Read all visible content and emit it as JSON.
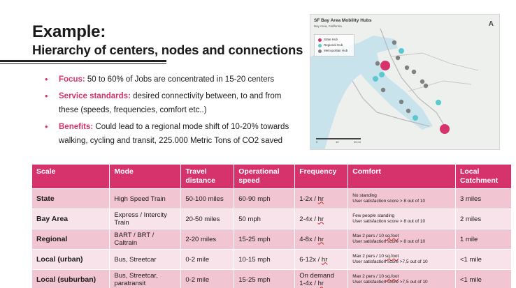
{
  "slide": {
    "title": "Example:",
    "subtitle": "Hierarchy of centers, nodes and connections"
  },
  "bullets": [
    {
      "label": "Focus:",
      "text": " 50 to 60% of Jobs are concentrated in 15-20 centers"
    },
    {
      "label": "Service standards:",
      "text": " desired connectivity between, to and from these (speeds, frequencies, comfort etc..)"
    },
    {
      "label": "Benefits:",
      "text": " Could lead to a regional mode shift of 10-20% towards walking, cycling and transit, 225.000 Metric Tons of CO2 saved"
    }
  ],
  "map": {
    "title": "SF Bay Area Mobility Hubs",
    "subtitle": "Bay Area, California",
    "legend": [
      {
        "label": "State Hub",
        "color": "#d6336c"
      },
      {
        "label": "Regional Hub",
        "color": "#5bc8d0"
      },
      {
        "label": "Metropolitan Hub",
        "color": "#808080"
      }
    ],
    "north_icon": "north-arrow-icon",
    "scale_labels": [
      "0",
      "10",
      "20 mi"
    ]
  },
  "colors": {
    "accent": "#d6336c",
    "row_dark": "#f2c5d2",
    "row_light": "#f9e3ea"
  },
  "table": {
    "headers": [
      "Scale",
      "Mode",
      "Travel distance",
      "Operational speed",
      "Frequency",
      "Comfort",
      "Local Catchment"
    ],
    "rows": [
      {
        "scale": "State",
        "mode": "High Speed Train",
        "distance": "50-100 miles",
        "speed": "60-90 mph",
        "freq_pre": "1-2x / ",
        "freq_unit": "hr",
        "comfort_1": "No standing",
        "comfort_2": "User satisfaction score > 8 out of 10",
        "catchment": "3 miles"
      },
      {
        "scale": "Bay Area",
        "mode": "Express / Intercity Train",
        "distance": "20-50 miles",
        "speed": "50 mph",
        "freq_pre": "2-4x / ",
        "freq_unit": "hr",
        "comfort_1": "Few people standing",
        "comfort_2": "User satisfaction score > 8 out of 10",
        "catchment": "2 miles"
      },
      {
        "scale": "Regional",
        "mode": "BART / BRT / Caltrain",
        "distance": "2-20 miles",
        "speed": "15-25 mph",
        "freq_pre": "4-8x / ",
        "freq_unit": "hr",
        "comfort_1": "Max 2 pers / 10 ",
        "comfort_1_sq": "sq.foot",
        "comfort_2": "User satisfaction score > 8 out of 10",
        "catchment": "1 mile"
      },
      {
        "scale": "Local (urban)",
        "mode": "Bus, Streetcar",
        "distance": "0-2 mile",
        "speed": "10-15 mph",
        "freq_pre": "6-12x / ",
        "freq_unit": "hr",
        "comfort_1": "Max 2 pers / 10 ",
        "comfort_1_sq": "sq.foot",
        "comfort_2": "User satisfaction score >7,5 out of 10",
        "catchment": "<1 mile"
      },
      {
        "scale": "Local (suburban)",
        "mode": "Bus, Streetcar, paratransit",
        "distance": "0-2 mile",
        "speed": "15-25 mph",
        "freq_top": "On demand",
        "freq_pre": "1-4x / ",
        "freq_unit": "hr",
        "comfort_1": "Max 2 pers / 10 ",
        "comfort_1_sq": "sq.foot",
        "comfort_2": "User satisfaction score >7,5 out of 10",
        "catchment": "<1 mile"
      }
    ]
  }
}
